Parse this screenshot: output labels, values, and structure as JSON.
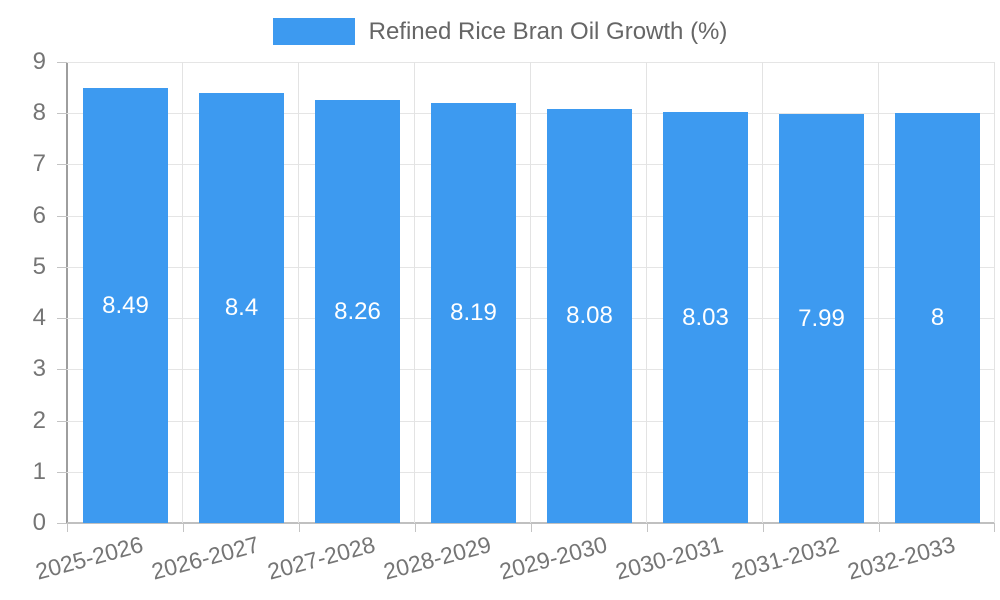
{
  "chart_data": {
    "type": "bar",
    "title": "Refined Rice Bran Oil Growth (%)",
    "legend": {
      "label": "Refined Rice Bran Oil Growth (%)",
      "position": "top"
    },
    "categories": [
      "2025-2026",
      "2026-2027",
      "2027-2028",
      "2028-2029",
      "2029-2030",
      "2030-2031",
      "2031-2032",
      "2032-2033"
    ],
    "values": [
      8.49,
      8.4,
      8.26,
      8.19,
      8.08,
      8.03,
      7.99,
      8
    ],
    "bar_value_labels": [
      "8.49",
      "8.4",
      "8.26",
      "8.19",
      "8.08",
      "8.03",
      "7.99",
      "8"
    ],
    "xlabel": "",
    "ylabel": "",
    "ylim": [
      0,
      9
    ],
    "y_ticks": [
      0,
      1,
      2,
      3,
      4,
      5,
      6,
      7,
      8,
      9
    ],
    "grid": true,
    "colors": {
      "bar": "#3d9af0",
      "grid": "#e5e5e5",
      "axis_line": "#9e9e9e",
      "baseline": "#c0c0c0",
      "tick_text": "#757575",
      "legend_text": "#666666",
      "value_label_text": "#ffffff",
      "background": "#ffffff"
    }
  }
}
